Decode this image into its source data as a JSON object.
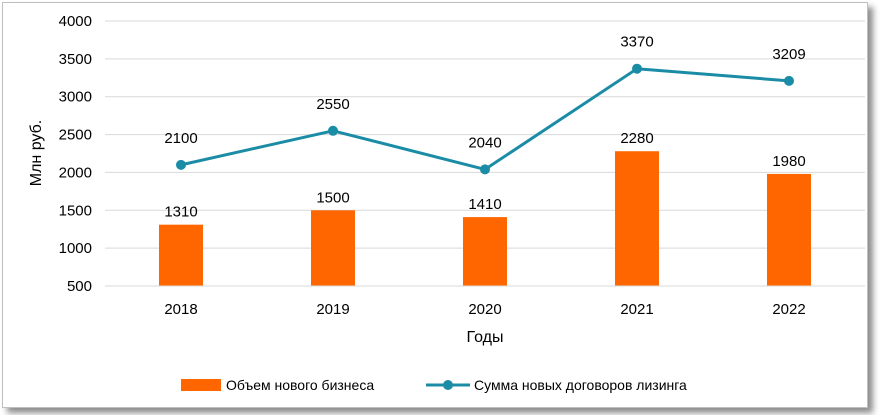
{
  "chart_data": {
    "type": "bar",
    "categories": [
      "2018",
      "2019",
      "2020",
      "2021",
      "2022"
    ],
    "xlabel": "Годы",
    "ylabel": "Млн руб.",
    "ylim": [
      500,
      4000
    ],
    "yticks": [
      "500",
      "1000",
      "1500",
      "2000",
      "2500",
      "3000",
      "3500",
      "4000"
    ],
    "grid": true,
    "legend_position": "bottom",
    "series": [
      {
        "name": "Объем нового бизнеса",
        "type": "bar",
        "color": "#ff6600",
        "values": [
          1310,
          1500,
          1410,
          2280,
          1980
        ],
        "labels": [
          "1310",
          "1500",
          "1410",
          "2280",
          "1980"
        ]
      },
      {
        "name": "Сумма новых договоров лизинга",
        "type": "line",
        "color": "#1b8ca6",
        "values": [
          2100,
          2550,
          2040,
          3370,
          3209
        ],
        "labels": [
          "2100",
          "2550",
          "2040",
          "3370",
          "3209"
        ]
      }
    ]
  }
}
